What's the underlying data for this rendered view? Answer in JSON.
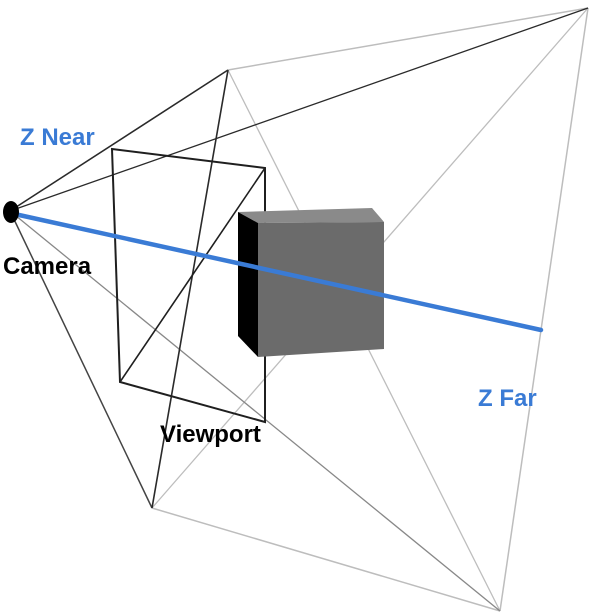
{
  "labels": {
    "z_near": "Z Near",
    "z_far": "Z Far",
    "camera": "Camera",
    "viewport": "Viewport"
  },
  "colors": {
    "accent_blue": "#3a7bd5",
    "near_frame": "#2a2a2a",
    "far_frame": "#bdbdbd",
    "cube_front": "#6b6b6b",
    "cube_side": "#000000",
    "cube_top": "#8a8a8a",
    "camera_dot": "#000000"
  }
}
